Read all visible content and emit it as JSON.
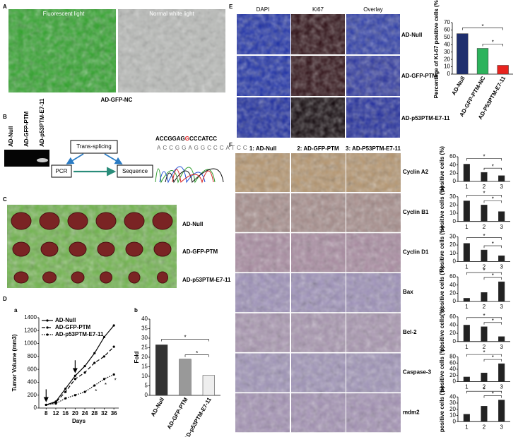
{
  "panels": {
    "A": {
      "letter": "A",
      "labels": [
        "Fluorescent light",
        "Normal white light"
      ],
      "caption": "AD-GFP-NC"
    },
    "B": {
      "letter": "B",
      "lanes": [
        "AD-Null",
        "AD-GFP-PTM",
        "AD-p53PTM-E7-11"
      ],
      "boxes": [
        "Trans-splicing",
        "PCR",
        "Sequence"
      ],
      "sequence": [
        "ACCGGAG",
        "G",
        "CCCATCC"
      ]
    },
    "C": {
      "letter": "C",
      "rows": [
        "AD-Null",
        "AD-GFP-PTM",
        "AD-p53PTM-E7-11"
      ]
    },
    "D": {
      "letter": "D",
      "sub": [
        "a",
        "b"
      ]
    },
    "E": {
      "letter": "E",
      "columns": [
        "DAPI",
        "Ki67",
        "Overlay"
      ],
      "rows": [
        "AD-Null",
        "AD-GFP-PTM",
        "AD-p53PTM-E7-11"
      ]
    },
    "F": {
      "letter": "F",
      "columns": [
        "1: AD-Null",
        "2: AD-GFP-PTM",
        "3: AD-P53PTM-E7-11"
      ],
      "rows": [
        "Cyclin A2",
        "Cyclin B1",
        "Cyclin D1",
        "Bax",
        "Bcl-2",
        "Caspase-3",
        "mdm2"
      ]
    }
  },
  "chart_data": [
    {
      "type": "line",
      "ylabel": "Tumor Volume (mm3)",
      "xlabel": "Days",
      "x": [
        8,
        12,
        16,
        20,
        24,
        28,
        32,
        36
      ],
      "xlim": [
        5,
        38
      ],
      "xticks": [
        8,
        12,
        16,
        20,
        24,
        28,
        32,
        36
      ],
      "ylim": [
        0,
        1400
      ],
      "yticks": [
        0,
        200,
        400,
        600,
        800,
        1000,
        1200,
        1400
      ],
      "series": [
        {
          "name": "AD-Null",
          "color": "#000000",
          "line_style": "solid",
          "values": [
            50,
            100,
            300,
            500,
            650,
            850,
            1100,
            1280
          ]
        },
        {
          "name": "AD-GFP-PTM",
          "color": "#000000",
          "line_style": "dashed",
          "values": [
            50,
            90,
            250,
            450,
            550,
            700,
            800,
            950
          ]
        },
        {
          "name": "AD-p53PTM-E7-11",
          "color": "#000000",
          "line_style": "dotted",
          "values": [
            50,
            70,
            150,
            200,
            250,
            350,
            450,
            520
          ]
        }
      ],
      "annotations": [
        "*",
        "*",
        "*"
      ]
    },
    {
      "type": "bar",
      "ylabel": "Fold",
      "categories": [
        "AD-Null",
        "AD-GFP-PTM",
        "AD-p53PTM-E7-11"
      ],
      "values": [
        26.5,
        19,
        10.5
      ],
      "colors": [
        "#333333",
        "#999999",
        "#eeeeee"
      ],
      "ylim": [
        0,
        40
      ],
      "yticks": [
        0,
        5,
        10,
        15,
        20,
        25,
        30,
        35,
        40
      ],
      "annotations": [
        "*",
        "*"
      ]
    },
    {
      "type": "bar",
      "ylabel": "Percentage of Ki-67 positive cells (%)",
      "categories": [
        "AD-Null",
        "AD-GFP-PTM-NC",
        "AD-P53PTM-E7-11"
      ],
      "values": [
        55,
        35,
        12
      ],
      "colors": [
        "#1f2f6e",
        "#2db35c",
        "#e8231e"
      ],
      "ylim": [
        0,
        70
      ],
      "yticks": [
        0,
        10,
        20,
        30,
        40,
        50,
        60,
        70
      ],
      "annotations": [
        "*",
        "*"
      ]
    },
    {
      "type": "bar",
      "ylabel": "positive cells (%)",
      "categories": [
        "1",
        "2",
        "3"
      ],
      "values": [
        42,
        22,
        14
      ],
      "colors": [
        "#222222",
        "#222222",
        "#222222"
      ],
      "ylim": [
        0,
        60
      ],
      "yticks": [
        0,
        20,
        40,
        60
      ],
      "annotations": [
        "*",
        "*"
      ]
    },
    {
      "type": "bar",
      "ylabel": "positive cells (%)",
      "categories": [
        "1",
        "2",
        "3"
      ],
      "values": [
        25,
        20,
        12
      ],
      "colors": [
        "#222222",
        "#222222",
        "#222222"
      ],
      "ylim": [
        0,
        30
      ],
      "yticks": [
        0,
        10,
        20,
        30
      ],
      "annotations": [
        "*",
        "*"
      ]
    },
    {
      "type": "bar",
      "ylabel": "Positive cells (%)",
      "categories": [
        "1",
        "2",
        "3"
      ],
      "values": [
        22,
        14,
        7
      ],
      "colors": [
        "#222222",
        "#222222",
        "#222222"
      ],
      "ylim": [
        0,
        30
      ],
      "yticks": [
        0,
        10,
        20,
        30
      ],
      "annotations": [
        "*",
        "*"
      ]
    },
    {
      "type": "bar",
      "ylabel": "positive cells (%)",
      "categories": [
        "1",
        "2",
        "3"
      ],
      "values": [
        8,
        22,
        48
      ],
      "colors": [
        "#222222",
        "#222222",
        "#222222"
      ],
      "ylim": [
        0,
        60
      ],
      "yticks": [
        0,
        20,
        40,
        60
      ],
      "annotations": [
        "*",
        "*"
      ]
    },
    {
      "type": "bar",
      "ylabel": "positive cells(%)",
      "categories": [
        "1",
        "2",
        "3"
      ],
      "values": [
        40,
        36,
        12
      ],
      "colors": [
        "#222222",
        "#222222",
        "#222222"
      ],
      "ylim": [
        0,
        60
      ],
      "yticks": [
        0,
        20,
        40,
        60
      ],
      "annotations": [
        "*",
        "*"
      ]
    },
    {
      "type": "bar",
      "ylabel": "positive cells (%)",
      "categories": [
        "1",
        "2",
        "3"
      ],
      "values": [
        15,
        28,
        58
      ],
      "colors": [
        "#222222",
        "#222222",
        "#222222"
      ],
      "ylim": [
        0,
        80
      ],
      "yticks": [
        0,
        20,
        40,
        60,
        80
      ],
      "annotations": [
        "*",
        "*"
      ]
    },
    {
      "type": "bar",
      "ylabel": "positive cells (%)",
      "categories": [
        "1",
        "2",
        "3"
      ],
      "values": [
        12,
        25,
        35
      ],
      "colors": [
        "#222222",
        "#222222",
        "#222222"
      ],
      "ylim": [
        0,
        40
      ],
      "yticks": [
        0,
        10,
        20,
        30,
        40
      ],
      "annotations": [
        "*",
        "*"
      ]
    }
  ]
}
